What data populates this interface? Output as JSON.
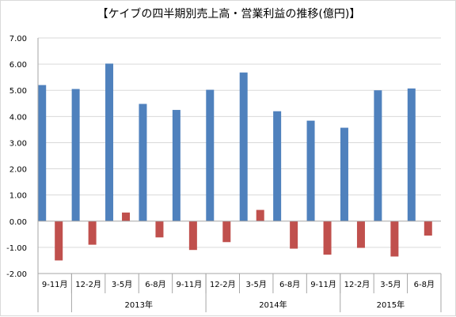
{
  "chart_data": {
    "type": "bar",
    "title": "【ケイブの四半期別売上高・営業利益の推移(億円)】",
    "categories": [
      "9-11月",
      "12-2月",
      "3-5月",
      "6-8月",
      "9-11月",
      "12-2月",
      "3-5月",
      "6-8月",
      "9-11月",
      "12-2月",
      "3-5月",
      "6-8月"
    ],
    "year_groups": [
      {
        "label": "",
        "count": 1
      },
      {
        "label": "2013年",
        "count": 4
      },
      {
        "label": "2014年",
        "count": 4
      },
      {
        "label": "2015年",
        "count": 3
      }
    ],
    "series": [
      {
        "color": "#4F81BD",
        "values": [
          5.2,
          5.05,
          6.02,
          4.48,
          4.25,
          5.02,
          5.68,
          4.2,
          3.84,
          3.57,
          5.0,
          5.07
        ]
      },
      {
        "color": "#C0504D",
        "values": [
          -1.5,
          -0.9,
          0.33,
          -0.62,
          -1.1,
          -0.8,
          0.43,
          -1.05,
          -1.28,
          -1.02,
          -1.35,
          -0.55
        ]
      }
    ],
    "ylim": [
      -2,
      7
    ],
    "yticks": [
      "7.00",
      "6.00",
      "5.00",
      "4.00",
      "3.00",
      "2.00",
      "1.00",
      "0.00",
      "-1.00",
      "-2.00"
    ],
    "grid": true,
    "legend": "none"
  }
}
